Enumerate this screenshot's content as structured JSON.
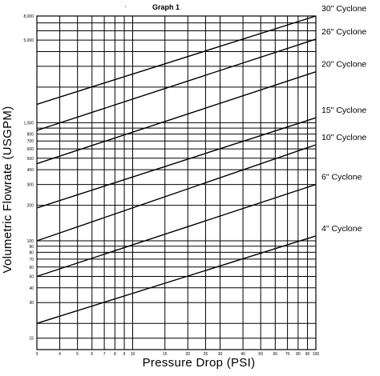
{
  "chart_data": {
    "type": "line",
    "title": "Graph 1",
    "xlabel": "Pressure Drop (PSI)",
    "ylabel": "Volumetric Flowrate (USGPM)",
    "x_scale": "log",
    "y_scale": "log",
    "xlim": [
      3,
      100
    ],
    "ylim": [
      12,
      8000
    ],
    "grid": true,
    "legend": "labels at right end of each line",
    "x_gridlines": [
      3,
      4,
      5,
      6,
      7,
      8,
      9,
      10,
      15,
      20,
      25,
      30,
      40,
      50,
      60,
      70,
      80,
      90,
      100
    ],
    "x_ticks": [
      "3",
      "4",
      "5",
      "6",
      "7",
      "8",
      "9",
      "10",
      "15",
      "20",
      "25",
      "30",
      "40",
      "50",
      "60",
      "70",
      "80",
      "90",
      "100"
    ],
    "y_gridlines": [
      15,
      20,
      30,
      40,
      50,
      60,
      70,
      80,
      90,
      100,
      200,
      300,
      400,
      500,
      600,
      700,
      800,
      900,
      1000,
      2000,
      3000,
      4000,
      5000,
      6000,
      7000,
      8000
    ],
    "y_ticks": [
      {
        "value": 15,
        "label": "15"
      },
      {
        "value": 30,
        "label": "30"
      },
      {
        "value": 40,
        "label": "40"
      },
      {
        "value": 50,
        "label": "50"
      },
      {
        "value": 60,
        "label": "60"
      },
      {
        "value": 70,
        "label": "70"
      },
      {
        "value": 80,
        "label": "80"
      },
      {
        "value": 90,
        "label": "90"
      },
      {
        "value": 100,
        "label": "100"
      },
      {
        "value": 200,
        "label": "200"
      },
      {
        "value": 300,
        "label": "300"
      },
      {
        "value": 400,
        "label": "400"
      },
      {
        "value": 500,
        "label": "500"
      },
      {
        "value": 600,
        "label": "600"
      },
      {
        "value": 700,
        "label": "700"
      },
      {
        "value": 800,
        "label": "800"
      },
      {
        "value": 1000,
        "label": "1,000"
      },
      {
        "value": 5000,
        "label": "5,000"
      },
      {
        "value": 8000,
        "label": "8,000"
      }
    ],
    "series": [
      {
        "name": "30\" Cyclone",
        "x": [
          3,
          100
        ],
        "y": [
          1430,
          8000
        ]
      },
      {
        "name": "26\" Cyclone",
        "x": [
          3,
          100
        ],
        "y": [
          860,
          5100
        ]
      },
      {
        "name": "20\" Cyclone",
        "x": [
          3,
          100
        ],
        "y": [
          450,
          2700
        ]
      },
      {
        "name": "15\" Cyclone",
        "x": [
          3,
          100
        ],
        "y": [
          190,
          1100
        ]
      },
      {
        "name": "10\" Cyclone",
        "x": [
          3,
          100
        ],
        "y": [
          100,
          650
        ]
      },
      {
        "name": "6\" Cyclone",
        "x": [
          3,
          100
        ],
        "y": [
          50,
          300
        ]
      },
      {
        "name": "4\" Cyclone",
        "x": [
          3,
          100
        ],
        "y": [
          20,
          110
        ]
      }
    ]
  }
}
